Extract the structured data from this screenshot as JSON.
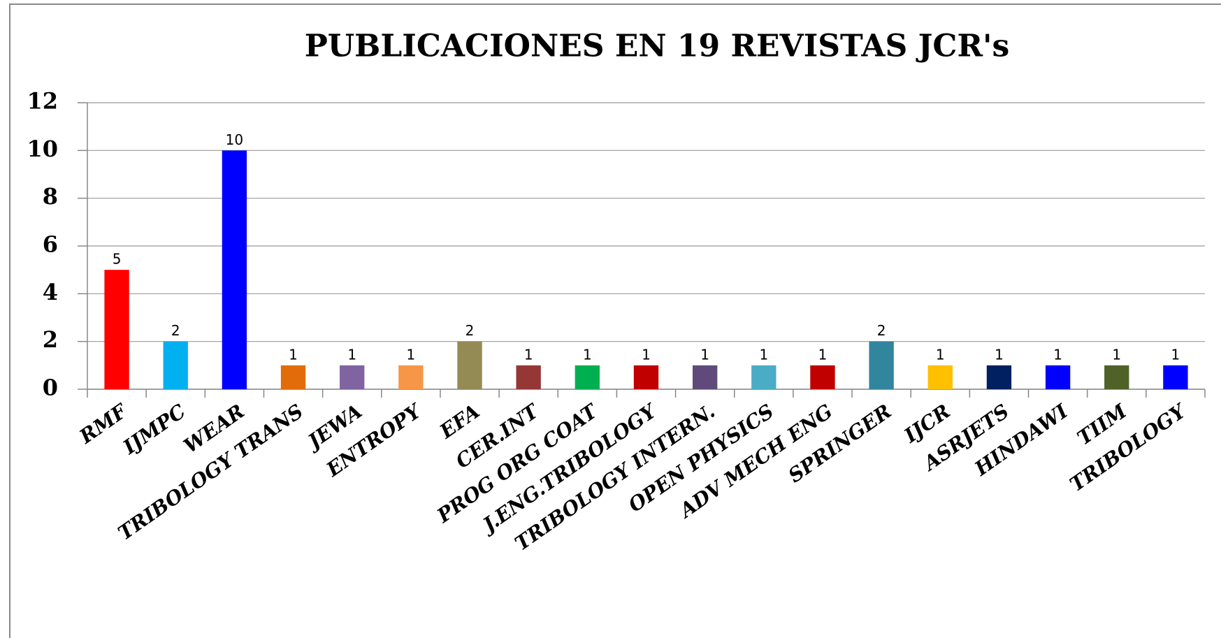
{
  "chart_data": {
    "type": "bar",
    "title": "PUBLICACIONES EN 19 REVISTAS JCR's",
    "categories": [
      "RMF",
      "IJMPC",
      "WEAR",
      "TRIBOLOGY TRANS",
      "JEWA",
      "ENTROPY",
      "EFA",
      "CER.INT",
      "PROG ORG COAT",
      "J.ENG.TRIBOLOGY",
      "TRIBOLOGY INTERN.",
      "OPEN PHYSICS",
      "ADV MECH ENG",
      "SPRINGER",
      "IJCR",
      "ASRJETS",
      "HINDAWI",
      "TIIM",
      "TRIBOLOGY"
    ],
    "values": [
      5,
      2,
      10,
      1,
      1,
      1,
      2,
      1,
      1,
      1,
      1,
      1,
      1,
      2,
      1,
      1,
      1,
      1,
      1
    ],
    "colors": [
      "#ff0000",
      "#00b0f0",
      "#0000ff",
      "#e36c0a",
      "#8064a2",
      "#f79646",
      "#948a54",
      "#953735",
      "#00b050",
      "#c00000",
      "#604a7b",
      "#4bacc6",
      "#c00000",
      "#31859c",
      "#ffc000",
      "#002060",
      "#0000ff",
      "#4f6228",
      "#0000ff"
    ],
    "ylim": [
      0,
      12
    ],
    "yticks": [
      0,
      2,
      4,
      6,
      8,
      10,
      12
    ],
    "grid": true
  }
}
